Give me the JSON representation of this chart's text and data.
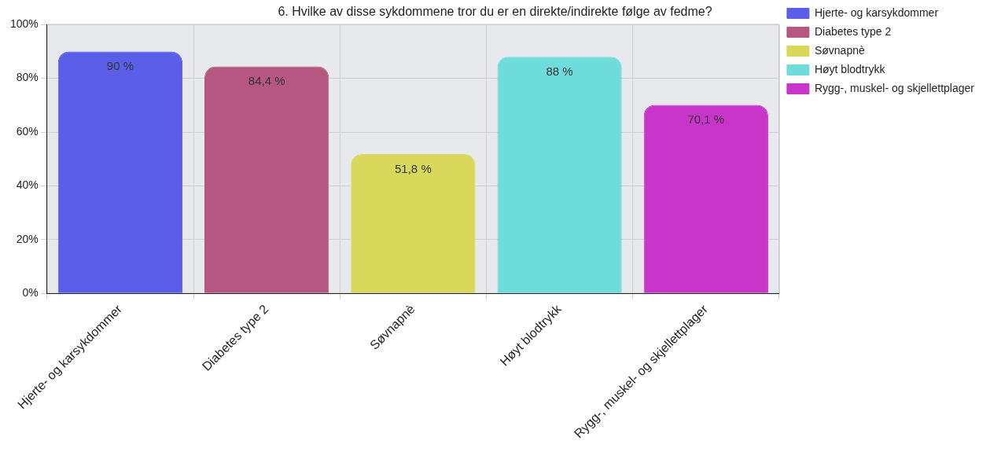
{
  "chart_data": {
    "type": "bar",
    "title": "6. Hvilke av disse sykdommene tror du er en direkte/indirekte følge av fedme?",
    "categories": [
      "Hjerte- og karsykdommer",
      "Diabetes type 2",
      "Søvnapnè",
      "Høyt blodtrykk",
      "Rygg-, muskel- og skjellettplager"
    ],
    "series": [
      {
        "name": "Hjerte- og karsykdommer",
        "color": "#5a5ee8",
        "values": [
          90,
          null,
          null,
          null,
          null
        ],
        "value_labels": [
          "90 %",
          null,
          null,
          null,
          null
        ]
      },
      {
        "name": "Diabetes type 2",
        "color": "#b5577f",
        "values": [
          null,
          84.4,
          null,
          null,
          null
        ],
        "value_labels": [
          null,
          "84,4 %",
          null,
          null,
          null
        ]
      },
      {
        "name": "Søvnapnè",
        "color": "#d8d85a",
        "values": [
          null,
          null,
          51.8,
          null,
          null
        ],
        "value_labels": [
          null,
          null,
          "51,8 %",
          null,
          null
        ]
      },
      {
        "name": "Høyt blodtrykk",
        "color": "#6fdcdc",
        "values": [
          null,
          null,
          null,
          88,
          null
        ],
        "value_labels": [
          null,
          null,
          null,
          "88 %",
          null
        ]
      },
      {
        "name": "Rygg-, muskel- og skjellettplager",
        "color": "#c934c9",
        "values": [
          null,
          null,
          null,
          null,
          70.1
        ],
        "value_labels": [
          null,
          null,
          null,
          null,
          "70,1 %"
        ]
      }
    ],
    "ylim": [
      0,
      100
    ],
    "yticks": [
      {
        "value": 0,
        "label": "0%"
      },
      {
        "value": 20,
        "label": "20%"
      },
      {
        "value": 40,
        "label": "40%"
      },
      {
        "value": 60,
        "label": "60%"
      },
      {
        "value": 80,
        "label": "80%"
      },
      {
        "value": 100,
        "label": "100%"
      }
    ],
    "grid": true,
    "legend": "right"
  }
}
